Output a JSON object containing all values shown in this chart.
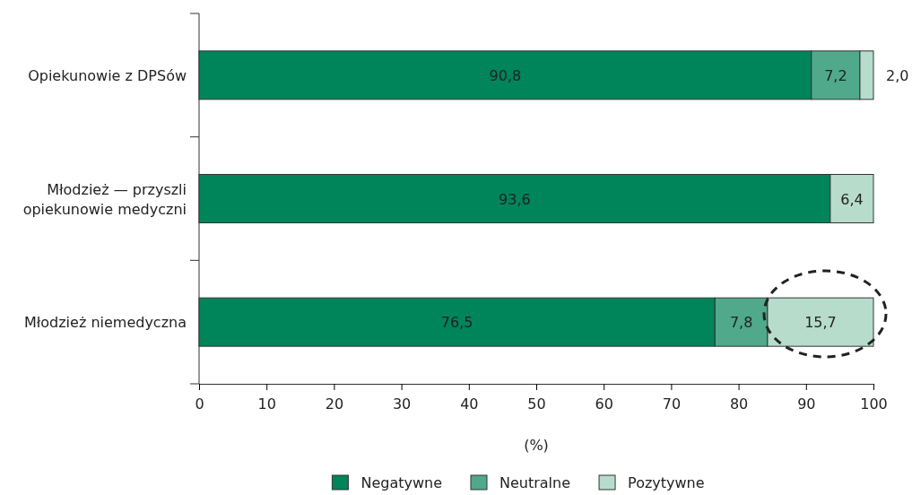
{
  "chart_data": {
    "type": "bar",
    "orientation": "horizontal",
    "stacked": true,
    "categories": [
      "Opiekunowie z DPSów",
      "Młodzież — przyszli opiekunowie medyczni",
      "Młodzież niemedyczna"
    ],
    "series": [
      {
        "name": "Negatywne",
        "color": "#00845a",
        "values": [
          90.8,
          93.6,
          76.5
        ],
        "value_labels": [
          "90,8",
          "93,6",
          "76,5"
        ]
      },
      {
        "name": "Neutralne",
        "color": "#4fa98a",
        "values": [
          7.2,
          null,
          7.8
        ],
        "value_labels": [
          "7,2",
          null,
          "7,8"
        ]
      },
      {
        "name": "Pozytywne",
        "color": "#b7dccc",
        "values": [
          2.0,
          6.4,
          15.7
        ],
        "value_labels": [
          "2,0",
          "6,4",
          "15,7"
        ]
      }
    ],
    "xlim": [
      0,
      100
    ],
    "xticks": [
      0,
      10,
      20,
      30,
      40,
      50,
      60,
      70,
      80,
      90,
      100
    ],
    "xlabel": "(%)",
    "legend": "bottom",
    "grid": false
  }
}
